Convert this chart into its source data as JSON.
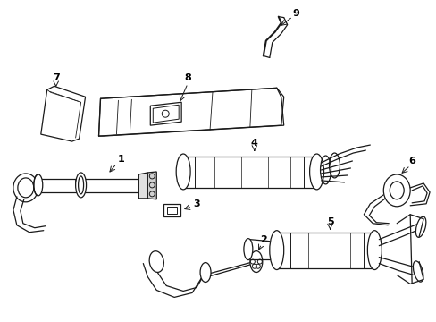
{
  "bg_color": "#ffffff",
  "line_color": "#1a1a1a",
  "lw": 0.9,
  "arrow_color": "#1a1a1a",
  "figsize": [
    4.89,
    3.6
  ],
  "dpi": 100,
  "components": {
    "label_fontsize": 8,
    "label_fontweight": "bold"
  }
}
